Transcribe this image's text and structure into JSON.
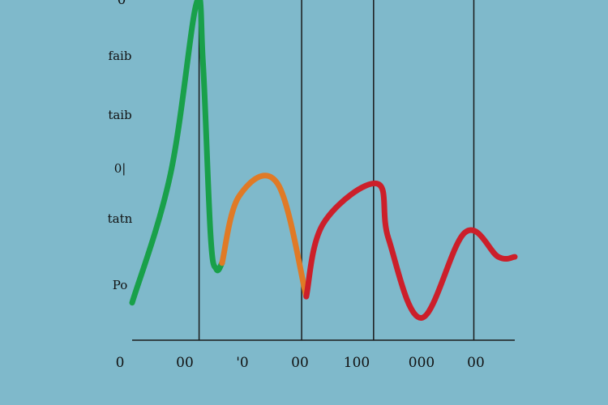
{
  "chart_data": {
    "type": "line",
    "x_ticks": [
      "0",
      "00",
      "'0",
      "00",
      "100",
      "000",
      "00"
    ],
    "y_ticks": [
      "Po",
      "tatn",
      "0|",
      "taib",
      "faib"
    ],
    "top_tick": "0",
    "ylim": [
      0,
      100
    ],
    "series": [
      {
        "color": "#19a04a",
        "points": [
          [
            0,
            3
          ],
          [
            10,
            45
          ],
          [
            16.8,
            101
          ],
          [
            18.5,
            82
          ],
          [
            20.5,
            25
          ],
          [
            22,
            14
          ],
          [
            23.5,
            16
          ]
        ]
      },
      {
        "color": "#e07a26",
        "points": [
          [
            23.5,
            16
          ],
          [
            28,
            38
          ],
          [
            38,
            42
          ],
          [
            45.5,
            5
          ]
        ]
      },
      {
        "color": "#cc1f2a",
        "points": [
          [
            45.5,
            5
          ],
          [
            50,
            29
          ],
          [
            64,
            42
          ],
          [
            67,
            24
          ],
          [
            75.6,
            -2
          ],
          [
            87,
            26
          ],
          [
            95.7,
            18
          ],
          [
            100,
            18
          ]
        ]
      }
    ],
    "vertical_lines": [
      17.5,
      44.3,
      63.1,
      89.3
    ],
    "colors": {
      "background": "#7fb9cb",
      "axis": "#1a1a1a",
      "green": "#19a04a",
      "orange": "#e07a26",
      "red": "#cc1f2a"
    }
  }
}
